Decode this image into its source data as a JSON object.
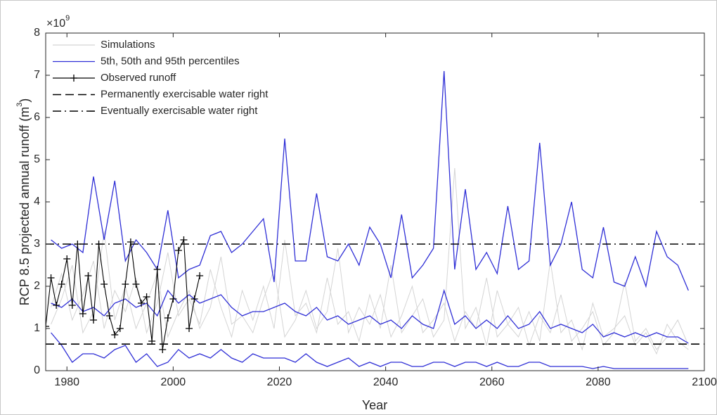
{
  "chart_data": {
    "type": "line",
    "x_label": "Year",
    "y_label": {
      "text": "RCP 8.5 projected annual runoff (m",
      "superscript": "3",
      "end": ")"
    },
    "y_multiplier": {
      "text": "×10",
      "superscript": "9"
    },
    "xlim": [
      1976,
      2100
    ],
    "xticks": [
      1980,
      2000,
      2020,
      2040,
      2060,
      2080,
      2100
    ],
    "ylim": [
      0,
      8
    ],
    "yticks": [
      0,
      1,
      2,
      3,
      4,
      5,
      6,
      7,
      8
    ],
    "legend": "upper-left",
    "x": [
      1977,
      1979,
      1981,
      1983,
      1985,
      1987,
      1989,
      1991,
      1993,
      1995,
      1997,
      1999,
      2001,
      2003,
      2005,
      2007,
      2009,
      2011,
      2013,
      2015,
      2017,
      2019,
      2021,
      2023,
      2025,
      2027,
      2029,
      2031,
      2033,
      2035,
      2037,
      2039,
      2041,
      2043,
      2045,
      2047,
      2049,
      2051,
      2053,
      2055,
      2057,
      2059,
      2061,
      2063,
      2065,
      2067,
      2069,
      2071,
      2073,
      2075,
      2077,
      2079,
      2081,
      2083,
      2085,
      2087,
      2089,
      2091,
      2093,
      2095,
      2097
    ],
    "series": [
      {
        "name": "Simulations",
        "color": "#d4d4d4",
        "lines": [
          [
            1.5,
            2.3,
            1.2,
            1.8,
            2.6,
            1.0,
            1.9,
            1.4,
            2.2,
            0.9,
            1.6,
            2.8,
            1.3,
            1.7,
            1.1,
            2.4,
            1.5,
            0.8,
            1.9,
            1.2,
            2.0,
            1.0,
            3.1,
            1.3,
            1.6,
            0.9,
            2.2,
            1.1,
            1.4,
            0.7,
            1.8,
            1.0,
            2.5,
            0.9,
            1.3,
            1.7,
            0.8,
            1.2,
            4.8,
            1.0,
            1.5,
            0.6,
            1.9,
            1.1,
            0.8,
            1.4,
            0.7,
            2.6,
            0.9,
            1.2,
            0.5,
            1.6,
            0.8,
            1.0,
            1.3,
            0.6,
            0.9,
            0.4,
            1.1,
            0.7,
            0.5
          ],
          [
            1.1,
            1.7,
            2.5,
            0.9,
            1.4,
            3.3,
            1.2,
            2.0,
            1.0,
            1.6,
            2.3,
            0.8,
            1.4,
            1.9,
            1.0,
            1.5,
            2.7,
            1.1,
            1.3,
            0.9,
            1.7,
            2.4,
            0.8,
            1.2,
            1.9,
            1.0,
            1.4,
            2.9,
            0.9,
            1.5,
            1.1,
            1.8,
            0.8,
            1.3,
            2.0,
            0.9,
            1.2,
            1.6,
            0.7,
            1.4,
            1.0,
            2.2,
            0.8,
            1.1,
            1.5,
            0.6,
            1.3,
            0.9,
            1.8,
            0.7,
            1.0,
            1.4,
            0.6,
            0.9,
            2.1,
            0.7,
            1.0,
            0.5,
            0.8,
            1.2,
            0.6
          ]
        ]
      },
      {
        "name": "5th, 50th and 95th percentiles",
        "color": "#2f2fd6",
        "lines": [
          [
            0.9,
            0.6,
            0.2,
            0.4,
            0.4,
            0.3,
            0.5,
            0.6,
            0.2,
            0.4,
            0.1,
            0.2,
            0.5,
            0.3,
            0.4,
            0.3,
            0.5,
            0.3,
            0.2,
            0.4,
            0.3,
            0.3,
            0.3,
            0.2,
            0.4,
            0.2,
            0.1,
            0.2,
            0.3,
            0.1,
            0.2,
            0.1,
            0.2,
            0.2,
            0.1,
            0.1,
            0.2,
            0.2,
            0.1,
            0.2,
            0.2,
            0.1,
            0.2,
            0.1,
            0.1,
            0.2,
            0.2,
            0.1,
            0.1,
            0.1,
            0.1,
            0.05,
            0.1,
            0.05,
            0.05,
            0.05,
            0.05,
            0.05,
            0.05,
            0.05,
            0.05
          ],
          [
            1.6,
            1.5,
            1.7,
            1.4,
            1.5,
            1.3,
            1.6,
            1.7,
            1.5,
            1.6,
            1.3,
            1.9,
            1.6,
            1.8,
            1.6,
            1.7,
            1.8,
            1.5,
            1.3,
            1.4,
            1.4,
            1.5,
            1.6,
            1.4,
            1.3,
            1.5,
            1.2,
            1.3,
            1.1,
            1.2,
            1.3,
            1.1,
            1.2,
            1.0,
            1.3,
            1.1,
            1.0,
            1.9,
            1.1,
            1.3,
            1.0,
            1.2,
            1.0,
            1.3,
            1.0,
            1.1,
            1.4,
            1.0,
            1.1,
            1.0,
            0.9,
            1.1,
            0.8,
            0.9,
            0.8,
            0.9,
            0.8,
            0.9,
            0.8,
            0.8,
            0.65
          ],
          [
            3.1,
            2.9,
            3.0,
            2.8,
            4.6,
            3.1,
            4.5,
            2.6,
            3.1,
            2.8,
            2.4,
            3.8,
            2.2,
            2.4,
            2.5,
            3.2,
            3.3,
            2.8,
            3.0,
            3.3,
            3.6,
            2.1,
            5.5,
            2.6,
            2.6,
            4.2,
            2.7,
            2.6,
            3.0,
            2.5,
            3.4,
            3.0,
            2.2,
            3.7,
            2.2,
            2.5,
            2.9,
            7.1,
            2.4,
            4.3,
            2.4,
            2.8,
            2.3,
            3.9,
            2.4,
            2.6,
            5.4,
            2.5,
            3.0,
            4.0,
            2.4,
            2.2,
            3.4,
            2.1,
            2.0,
            2.7,
            2.0,
            3.3,
            2.7,
            2.5,
            1.9
          ]
        ]
      },
      {
        "name": "Observed runoff",
        "color": "#000000",
        "marker": "+",
        "x": [
          1976,
          1977,
          1978,
          1979,
          1980,
          1981,
          1982,
          1983,
          1984,
          1985,
          1986,
          1987,
          1988,
          1989,
          1990,
          1991,
          1992,
          1993,
          1994,
          1995,
          1996,
          1997,
          1998,
          1999,
          2000,
          2001,
          2002,
          2003,
          2004,
          2005
        ],
        "values": [
          1.05,
          2.2,
          1.55,
          2.05,
          2.65,
          1.55,
          3.0,
          1.35,
          2.25,
          1.2,
          3.0,
          2.05,
          1.3,
          0.85,
          1.0,
          2.05,
          3.05,
          2.05,
          1.6,
          1.75,
          0.7,
          2.4,
          0.5,
          1.25,
          1.7,
          2.85,
          3.1,
          1.0,
          1.7,
          2.25
        ]
      }
    ],
    "hlines": [
      {
        "name": "Permanently exercisable water right",
        "value": 0.63,
        "color": "#000000",
        "dash": "dashed"
      },
      {
        "name": "Eventually exercisable water right",
        "value": 3.0,
        "color": "#000000",
        "dash": "dash-dot"
      }
    ]
  }
}
